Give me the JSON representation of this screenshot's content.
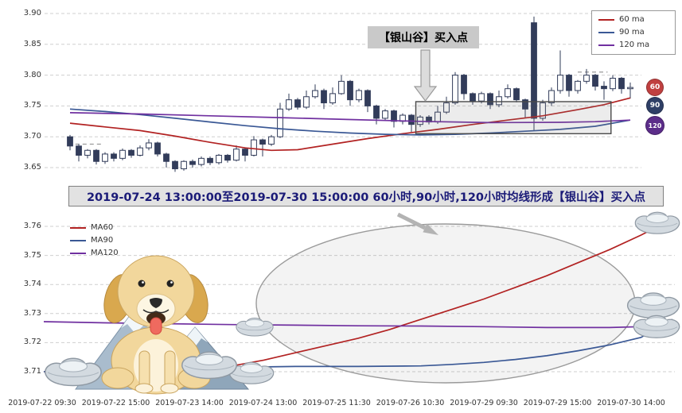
{
  "top_chart": {
    "annotation_label": "【银山谷】买入点",
    "y_ticks": [
      "3.90",
      "3.85",
      "3.80",
      "3.75",
      "3.70",
      "3.65"
    ],
    "legend": [
      {
        "label": "60 ma",
        "color": "#b22222"
      },
      {
        "label": "90 ma",
        "color": "#3a5895"
      },
      {
        "label": "120 ma",
        "color": "#7030a0"
      }
    ],
    "badges": [
      {
        "label": "60",
        "color": "#c04040"
      },
      {
        "label": "90",
        "color": "#2f3f66"
      },
      {
        "label": "120",
        "color": "#5c2d8a"
      }
    ]
  },
  "banner": {
    "text": "2019-07-24 13:00:00至2019-07-30 15:00:00 60小时,90小时,120小时均线形成【银山谷】买入点"
  },
  "bottom_chart": {
    "y_ticks": [
      "3.76",
      "3.75",
      "3.74",
      "3.73",
      "3.72",
      "3.71"
    ],
    "legend": [
      {
        "label": "MA60",
        "color": "#b22222"
      },
      {
        "label": "MA90",
        "color": "#3a5895"
      },
      {
        "label": "MA120",
        "color": "#7030a0"
      }
    ],
    "x_labels": [
      "2019-07-22 09:30",
      "2019-07-22 15:00",
      "2019-07-23 14:00",
      "2019-07-24 13:00",
      "2019-07-25 11:30",
      "2019-07-26 10:30",
      "2019-07-29 09:30",
      "2019-07-29 15:00",
      "2019-07-30 14:00"
    ]
  },
  "chart_data": [
    {
      "type": "candlestick",
      "ylim": [
        3.64,
        3.905
      ],
      "y_ticks": [
        3.9,
        3.85,
        3.8,
        3.75,
        3.7,
        3.65
      ],
      "candles_ohlc": [
        [
          3.7,
          3.703,
          3.678,
          3.685
        ],
        [
          3.685,
          3.688,
          3.66,
          3.67
        ],
        [
          3.67,
          3.68,
          3.665,
          3.678
        ],
        [
          3.678,
          3.68,
          3.655,
          3.66
        ],
        [
          3.66,
          3.675,
          3.656,
          3.672
        ],
        [
          3.672,
          3.675,
          3.66,
          3.665
        ],
        [
          3.665,
          3.681,
          3.662,
          3.678
        ],
        [
          3.678,
          3.68,
          3.666,
          3.67
        ],
        [
          3.67,
          3.686,
          3.668,
          3.682
        ],
        [
          3.682,
          3.696,
          3.678,
          3.69
        ],
        [
          3.69,
          3.692,
          3.668,
          3.672
        ],
        [
          3.672,
          3.674,
          3.65,
          3.66
        ],
        [
          3.66,
          3.662,
          3.643,
          3.648
        ],
        [
          3.648,
          3.662,
          3.645,
          3.66
        ],
        [
          3.66,
          3.663,
          3.65,
          3.655
        ],
        [
          3.655,
          3.668,
          3.652,
          3.665
        ],
        [
          3.665,
          3.668,
          3.654,
          3.658
        ],
        [
          3.658,
          3.672,
          3.655,
          3.67
        ],
        [
          3.67,
          3.672,
          3.658,
          3.662
        ],
        [
          3.662,
          3.686,
          3.66,
          3.68
        ],
        [
          3.68,
          3.683,
          3.66,
          3.67
        ],
        [
          3.67,
          3.701,
          3.668,
          3.695
        ],
        [
          3.695,
          3.697,
          3.668,
          3.688
        ],
        [
          3.688,
          3.703,
          3.685,
          3.7
        ],
        [
          3.7,
          3.755,
          3.698,
          3.745
        ],
        [
          3.745,
          3.77,
          3.742,
          3.76
        ],
        [
          3.76,
          3.763,
          3.744,
          3.748
        ],
        [
          3.748,
          3.775,
          3.745,
          3.765
        ],
        [
          3.765,
          3.785,
          3.762,
          3.775
        ],
        [
          3.775,
          3.778,
          3.745,
          3.755
        ],
        [
          3.755,
          3.78,
          3.752,
          3.77
        ],
        [
          3.77,
          3.8,
          3.768,
          3.79
        ],
        [
          3.79,
          3.792,
          3.75,
          3.76
        ],
        [
          3.76,
          3.778,
          3.756,
          3.775
        ],
        [
          3.775,
          3.777,
          3.74,
          3.75
        ],
        [
          3.75,
          3.752,
          3.72,
          3.73
        ],
        [
          3.73,
          3.745,
          3.726,
          3.742
        ],
        [
          3.742,
          3.744,
          3.715,
          3.725
        ],
        [
          3.725,
          3.738,
          3.72,
          3.735
        ],
        [
          3.735,
          3.737,
          3.708,
          3.72
        ],
        [
          3.72,
          3.735,
          3.716,
          3.732
        ],
        [
          3.732,
          3.735,
          3.72,
          3.724
        ],
        [
          3.724,
          3.75,
          3.721,
          3.74
        ],
        [
          3.74,
          3.765,
          3.737,
          3.755
        ],
        [
          3.755,
          3.805,
          3.752,
          3.8
        ],
        [
          3.8,
          3.802,
          3.76,
          3.77
        ],
        [
          3.77,
          3.772,
          3.752,
          3.758
        ],
        [
          3.758,
          3.773,
          3.754,
          3.77
        ],
        [
          3.77,
          3.772,
          3.745,
          3.752
        ],
        [
          3.752,
          3.775,
          3.748,
          3.765
        ],
        [
          3.765,
          3.785,
          3.762,
          3.778
        ],
        [
          3.778,
          3.78,
          3.756,
          3.76
        ],
        [
          3.76,
          3.762,
          3.73,
          3.745
        ],
        [
          3.885,
          3.895,
          3.71,
          3.73
        ],
        [
          3.73,
          3.76,
          3.726,
          3.755
        ],
        [
          3.755,
          3.78,
          3.75,
          3.775
        ],
        [
          3.775,
          3.84,
          3.77,
          3.8
        ],
        [
          3.8,
          3.802,
          3.765,
          3.775
        ],
        [
          3.775,
          3.792,
          3.77,
          3.79
        ],
        [
          3.79,
          3.81,
          3.786,
          3.8
        ],
        [
          3.8,
          3.802,
          3.775,
          3.782
        ],
        [
          3.782,
          3.79,
          3.76,
          3.778
        ],
        [
          3.778,
          3.8,
          3.774,
          3.795
        ],
        [
          3.795,
          3.797,
          3.77,
          3.778
        ],
        [
          3.778,
          3.788,
          3.762,
          3.78
        ]
      ],
      "series": [
        {
          "name": "60 ma",
          "color": "#b22222",
          "points": [
            [
              0,
              3.722
            ],
            [
              4,
              3.716
            ],
            [
              8,
              3.71
            ],
            [
              12,
              3.701
            ],
            [
              16,
              3.691
            ],
            [
              20,
              3.682
            ],
            [
              23,
              3.678
            ],
            [
              26,
              3.679
            ],
            [
              30,
              3.688
            ],
            [
              34,
              3.697
            ],
            [
              38,
              3.705
            ],
            [
              42,
              3.712
            ],
            [
              46,
              3.72
            ],
            [
              50,
              3.727
            ],
            [
              54,
              3.734
            ],
            [
              58,
              3.744
            ],
            [
              61,
              3.752
            ],
            [
              64,
              3.763
            ]
          ]
        },
        {
          "name": "90 ma",
          "color": "#3a5895",
          "points": [
            [
              0,
              3.745
            ],
            [
              4,
              3.741
            ],
            [
              8,
              3.736
            ],
            [
              12,
              3.73
            ],
            [
              16,
              3.724
            ],
            [
              20,
              3.718
            ],
            [
              24,
              3.713
            ],
            [
              28,
              3.709
            ],
            [
              32,
              3.706
            ],
            [
              36,
              3.704
            ],
            [
              40,
              3.703
            ],
            [
              44,
              3.704
            ],
            [
              48,
              3.706
            ],
            [
              52,
              3.709
            ],
            [
              56,
              3.712
            ],
            [
              60,
              3.717
            ],
            [
              64,
              3.727
            ]
          ]
        },
        {
          "name": "120 ma",
          "color": "#7030a0",
          "points": [
            [
              0,
              3.739
            ],
            [
              8,
              3.737
            ],
            [
              16,
              3.734
            ],
            [
              24,
              3.731
            ],
            [
              32,
              3.728
            ],
            [
              40,
              3.725
            ],
            [
              48,
              3.723
            ],
            [
              56,
              3.7235
            ],
            [
              60,
              3.7245
            ],
            [
              64,
              3.727
            ]
          ]
        }
      ],
      "highlight_box": {
        "from_idx": 39.5,
        "to_idx": 61.8,
        "price_top": 3.757,
        "price_bottom": 3.705
      },
      "dashed_segments": [
        {
          "price": 3.688,
          "from_idx": -0.2,
          "to_idx": 3.6
        },
        {
          "price": 3.805,
          "from_idx": 58.0,
          "to_idx": 61.4
        }
      ]
    },
    {
      "type": "line",
      "ylim": [
        3.701,
        3.766
      ],
      "y_ticks": [
        3.76,
        3.75,
        3.74,
        3.73,
        3.72,
        3.71
      ],
      "x_tick_labels": [
        "2019-07-22 09:30",
        "2019-07-22 15:00",
        "2019-07-23 14:00",
        "2019-07-24 13:00",
        "2019-07-25 11:30",
        "2019-07-26 10:30",
        "2019-07-29 09:30",
        "2019-07-29 15:00",
        "2019-07-30 14:00"
      ],
      "series": [
        {
          "name": "MA60",
          "color": "#b22222",
          "points": [
            [
              0,
              3.71
            ],
            [
              0.08,
              3.71
            ],
            [
              0.16,
              3.7105
            ],
            [
              0.24,
              3.711
            ],
            [
              0.3,
              3.712
            ],
            [
              0.35,
              3.714
            ],
            [
              0.4,
              3.7165
            ],
            [
              0.45,
              3.719
            ],
            [
              0.5,
              3.7215
            ],
            [
              0.55,
              3.7245
            ],
            [
              0.6,
              3.728
            ],
            [
              0.65,
              3.7315
            ],
            [
              0.7,
              3.735
            ],
            [
              0.75,
              3.739
            ],
            [
              0.8,
              3.743
            ],
            [
              0.85,
              3.7475
            ],
            [
              0.9,
              3.752
            ],
            [
              0.95,
              3.757
            ],
            [
              1.0,
              3.7625
            ]
          ]
        },
        {
          "name": "MA90",
          "color": "#3a5895",
          "points": [
            [
              0,
              3.71
            ],
            [
              0.1,
              3.7105
            ],
            [
              0.2,
              3.711
            ],
            [
              0.3,
              3.7115
            ],
            [
              0.4,
              3.7118
            ],
            [
              0.5,
              3.7118
            ],
            [
              0.6,
              3.712
            ],
            [
              0.65,
              3.7125
            ],
            [
              0.7,
              3.7132
            ],
            [
              0.75,
              3.7142
            ],
            [
              0.8,
              3.7155
            ],
            [
              0.85,
              3.7172
            ],
            [
              0.9,
              3.7192
            ],
            [
              0.95,
              3.7218
            ],
            [
              1.0,
              3.728
            ]
          ]
        },
        {
          "name": "MA120",
          "color": "#7030a0",
          "points": [
            [
              0,
              3.7272
            ],
            [
              0.1,
              3.7268
            ],
            [
              0.2,
              3.7265
            ],
            [
              0.3,
              3.7262
            ],
            [
              0.4,
              3.726
            ],
            [
              0.5,
              3.7258
            ],
            [
              0.6,
              3.7257
            ],
            [
              0.7,
              3.7255
            ],
            [
              0.8,
              3.7252
            ],
            [
              0.9,
              3.7252
            ],
            [
              1.0,
              3.7258
            ]
          ]
        }
      ]
    }
  ]
}
